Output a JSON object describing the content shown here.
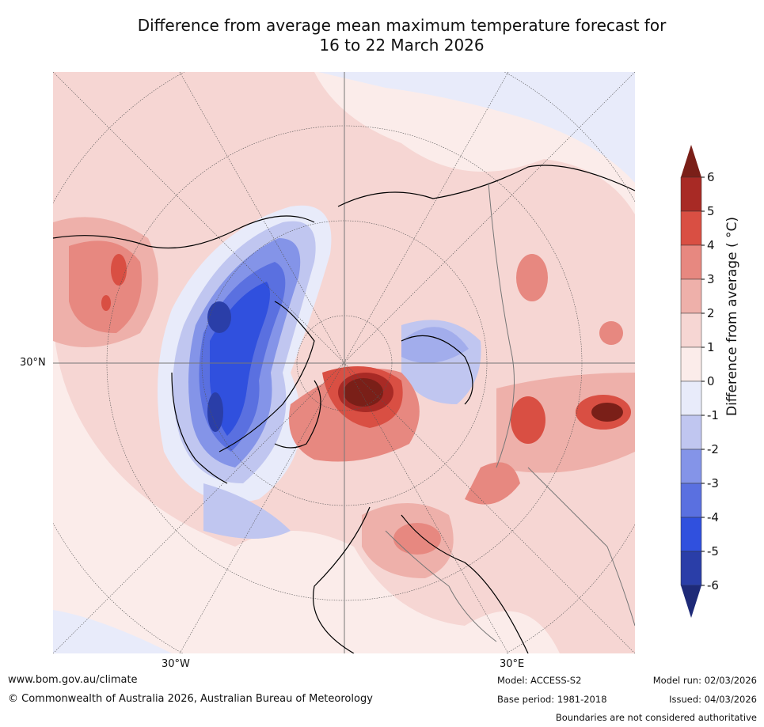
{
  "title_line1": "Difference from average mean maximum temperature forecast for",
  "title_line2": "16 to 22 March 2026",
  "map": {
    "lat_labels": [
      "30°N"
    ],
    "lon_labels": [
      "30°W",
      "30°E"
    ]
  },
  "colorbar": {
    "label": "Difference from average ( °C)",
    "ticks": [
      "6",
      "5",
      "4",
      "3",
      "2",
      "1",
      "0",
      "-1",
      "-2",
      "-3",
      "-4",
      "-5",
      "-6"
    ],
    "bands": [
      "#a82a25",
      "#d94f43",
      "#e78880",
      "#eeb0aa",
      "#f6d6d3",
      "#fbecea",
      "#e8ebfa",
      "#c0c6f0",
      "#8494e8",
      "#5a70e0",
      "#3050de",
      "#2a3ea8"
    ],
    "over_color": "#7a1f18",
    "under_color": "#1e2a78"
  },
  "footer": {
    "url": "www.bom.gov.au/climate",
    "copyright": "© Commonwealth of Australia 2026, Australian Bureau of Meteorology",
    "model": "Model: ACCESS-S2",
    "base_period": "Base period: 1981-2018",
    "model_run": "Model run: 02/03/2026",
    "issued": "Issued: 04/03/2026",
    "disclaimer": "Boundaries are not considered authoritative"
  }
}
